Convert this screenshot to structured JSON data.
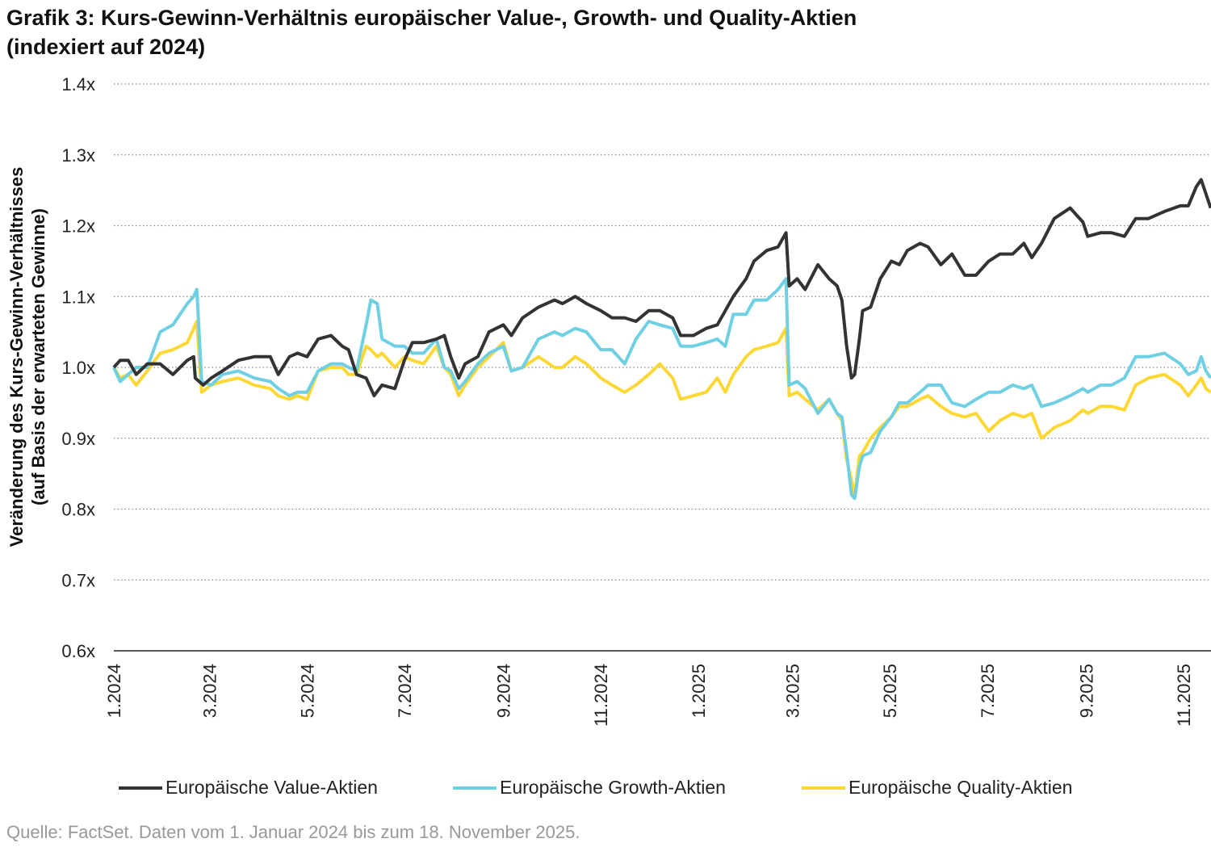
{
  "title_line1": "Grafik 3: Kurs-Gewinn-Verhältnis europäischer Value-, Growth- und Quality-Aktien",
  "title_line2": "(indexiert auf 2024)",
  "source": "Quelle: FactSet. Daten vom 1. Januar 2024 bis zum 18. November 2025.",
  "chart_data": {
    "type": "line",
    "ylabel_line1": "Veränderung des Kurs-Gewinn-Verhältnisses",
    "ylabel_line2": "(auf Basis der erwarteten Gewinne)",
    "ylim": [
      0.6,
      1.4
    ],
    "yticks": [
      0.6,
      0.7,
      0.8,
      0.9,
      1.0,
      1.1,
      1.2,
      1.3,
      1.4
    ],
    "ytick_labels": [
      "0.6x",
      "0.7x",
      "0.8x",
      "0.9x",
      "1.0x",
      "1.1x",
      "1.2x",
      "1.3x",
      "1.4x"
    ],
    "xlim": [
      "2024-01-01",
      "2025-11-18"
    ],
    "xticks": [
      "2024-01-01",
      "2024-03-01",
      "2024-05-01",
      "2024-07-01",
      "2024-09-01",
      "2024-11-01",
      "2025-01-01",
      "2025-03-01",
      "2025-05-01",
      "2025-07-01",
      "2025-09-01",
      "2025-11-01"
    ],
    "xtick_labels": [
      "1.2024",
      "3.2024",
      "5.2024",
      "7.2024",
      "9.2024",
      "11.2024",
      "1.2025",
      "3.2025",
      "5.2025",
      "7.2025",
      "9.2025",
      "11.2025"
    ],
    "grid": "horizontal dotted",
    "legend_position": "bottom",
    "series": [
      {
        "name": "Europäische Value-Aktien",
        "color": "#333333",
        "dates": [
          "2024-01-01",
          "2024-01-05",
          "2024-01-10",
          "2024-01-15",
          "2024-01-22",
          "2024-01-30",
          "2024-02-07",
          "2024-02-16",
          "2024-02-20",
          "2024-02-21",
          "2024-02-26",
          "2024-03-02",
          "2024-03-09",
          "2024-03-19",
          "2024-03-29",
          "2024-04-08",
          "2024-04-13",
          "2024-04-20",
          "2024-04-25",
          "2024-05-01",
          "2024-05-08",
          "2024-05-16",
          "2024-05-23",
          "2024-05-27",
          "2024-06-01",
          "2024-06-07",
          "2024-06-12",
          "2024-06-17",
          "2024-06-25",
          "2024-07-01",
          "2024-07-06",
          "2024-07-13",
          "2024-07-21",
          "2024-07-26",
          "2024-07-30",
          "2024-08-04",
          "2024-08-08",
          "2024-08-16",
          "2024-08-23",
          "2024-09-01",
          "2024-09-06",
          "2024-09-13",
          "2024-09-23",
          "2024-10-03",
          "2024-10-08",
          "2024-10-16",
          "2024-10-23",
          "2024-11-01",
          "2024-11-08",
          "2024-11-16",
          "2024-11-23",
          "2024-12-01",
          "2024-12-08",
          "2024-12-16",
          "2024-12-21",
          "2024-12-29",
          "2025-01-06",
          "2025-01-13",
          "2025-01-18",
          "2025-01-23",
          "2025-01-31",
          "2025-02-05",
          "2025-02-13",
          "2025-02-20",
          "2025-02-25",
          "2025-02-27",
          "2025-03-04",
          "2025-03-09",
          "2025-03-17",
          "2025-03-24",
          "2025-03-29",
          "2025-04-01",
          "2025-04-04",
          "2025-04-07",
          "2025-04-09",
          "2025-04-12",
          "2025-04-14",
          "2025-04-19",
          "2025-04-25",
          "2025-05-02",
          "2025-05-07",
          "2025-05-12",
          "2025-05-20",
          "2025-05-25",
          "2025-06-02",
          "2025-06-09",
          "2025-06-17",
          "2025-06-24",
          "2025-07-02",
          "2025-07-09",
          "2025-07-17",
          "2025-07-24",
          "2025-07-29",
          "2025-08-04",
          "2025-08-12",
          "2025-08-22",
          "2025-08-30",
          "2025-09-02",
          "2025-09-10",
          "2025-09-17",
          "2025-09-25",
          "2025-10-02",
          "2025-10-10",
          "2025-10-20",
          "2025-10-30",
          "2025-11-04",
          "2025-11-09",
          "2025-11-12",
          "2025-11-15",
          "2025-11-18"
        ],
        "values": [
          1.0,
          1.01,
          1.01,
          0.99,
          1.005,
          1.005,
          0.99,
          1.01,
          1.015,
          0.985,
          0.975,
          0.985,
          0.995,
          1.01,
          1.015,
          1.015,
          0.99,
          1.015,
          1.02,
          1.015,
          1.04,
          1.045,
          1.03,
          1.025,
          0.99,
          0.985,
          0.96,
          0.975,
          0.97,
          1.01,
          1.035,
          1.035,
          1.04,
          1.045,
          1.015,
          0.985,
          1.005,
          1.015,
          1.05,
          1.06,
          1.045,
          1.07,
          1.085,
          1.095,
          1.09,
          1.1,
          1.09,
          1.08,
          1.07,
          1.07,
          1.065,
          1.08,
          1.08,
          1.07,
          1.045,
          1.045,
          1.055,
          1.06,
          1.08,
          1.1,
          1.125,
          1.15,
          1.165,
          1.17,
          1.19,
          1.115,
          1.125,
          1.11,
          1.145,
          1.125,
          1.115,
          1.095,
          1.03,
          0.985,
          0.99,
          1.04,
          1.08,
          1.085,
          1.125,
          1.15,
          1.145,
          1.165,
          1.175,
          1.17,
          1.145,
          1.16,
          1.13,
          1.13,
          1.15,
          1.16,
          1.16,
          1.175,
          1.155,
          1.175,
          1.21,
          1.225,
          1.205,
          1.185,
          1.19,
          1.19,
          1.185,
          1.21,
          1.21,
          1.22,
          1.228,
          1.228,
          1.255,
          1.265,
          1.245,
          1.225
        ]
      },
      {
        "name": "Europäische Growth-Aktien",
        "color": "#6fd0e4",
        "dates": [
          "2024-01-01",
          "2024-01-05",
          "2024-01-10",
          "2024-01-15",
          "2024-01-22",
          "2024-01-30",
          "2024-02-07",
          "2024-02-16",
          "2024-02-20",
          "2024-02-22",
          "2024-02-25",
          "2024-03-02",
          "2024-03-09",
          "2024-03-19",
          "2024-03-29",
          "2024-04-08",
          "2024-04-13",
          "2024-04-20",
          "2024-04-25",
          "2024-05-01",
          "2024-05-08",
          "2024-05-16",
          "2024-05-23",
          "2024-05-27",
          "2024-06-01",
          "2024-06-07",
          "2024-06-10",
          "2024-06-14",
          "2024-06-17",
          "2024-06-25",
          "2024-07-01",
          "2024-07-06",
          "2024-07-13",
          "2024-07-21",
          "2024-07-26",
          "2024-07-30",
          "2024-08-04",
          "2024-08-08",
          "2024-08-16",
          "2024-08-23",
          "2024-09-01",
          "2024-09-06",
          "2024-09-13",
          "2024-09-23",
          "2024-10-03",
          "2024-10-08",
          "2024-10-16",
          "2024-10-23",
          "2024-11-01",
          "2024-11-08",
          "2024-11-16",
          "2024-11-23",
          "2024-12-01",
          "2024-12-08",
          "2024-12-16",
          "2024-12-21",
          "2024-12-29",
          "2025-01-06",
          "2025-01-13",
          "2025-01-18",
          "2025-01-23",
          "2025-01-31",
          "2025-02-05",
          "2025-02-13",
          "2025-02-20",
          "2025-02-25",
          "2025-02-27",
          "2025-03-04",
          "2025-03-09",
          "2025-03-17",
          "2025-03-24",
          "2025-03-29",
          "2025-04-01",
          "2025-04-04",
          "2025-04-07",
          "2025-04-09",
          "2025-04-12",
          "2025-04-14",
          "2025-04-19",
          "2025-04-25",
          "2025-05-02",
          "2025-05-07",
          "2025-05-12",
          "2025-05-20",
          "2025-05-25",
          "2025-06-02",
          "2025-06-09",
          "2025-06-17",
          "2025-06-24",
          "2025-07-02",
          "2025-07-09",
          "2025-07-17",
          "2025-07-24",
          "2025-07-29",
          "2025-08-04",
          "2025-08-12",
          "2025-08-22",
          "2025-08-30",
          "2025-09-02",
          "2025-09-10",
          "2025-09-17",
          "2025-09-25",
          "2025-10-02",
          "2025-10-10",
          "2025-10-20",
          "2025-10-30",
          "2025-11-04",
          "2025-11-09",
          "2025-11-12",
          "2025-11-15",
          "2025-11-18"
        ],
        "values": [
          1.0,
          0.98,
          0.99,
          1.0,
          1.0,
          1.05,
          1.06,
          1.09,
          1.1,
          1.11,
          0.98,
          0.975,
          0.99,
          0.995,
          0.985,
          0.98,
          0.97,
          0.96,
          0.965,
          0.965,
          0.995,
          1.005,
          1.005,
          1.0,
          0.995,
          1.06,
          1.095,
          1.09,
          1.04,
          1.03,
          1.03,
          1.02,
          1.02,
          1.04,
          1.0,
          0.995,
          0.97,
          0.98,
          1.005,
          1.02,
          1.03,
          0.995,
          1.0,
          1.04,
          1.05,
          1.045,
          1.055,
          1.05,
          1.025,
          1.025,
          1.005,
          1.04,
          1.065,
          1.06,
          1.055,
          1.03,
          1.03,
          1.035,
          1.04,
          1.03,
          1.075,
          1.075,
          1.095,
          1.095,
          1.11,
          1.125,
          0.975,
          0.98,
          0.97,
          0.935,
          0.955,
          0.935,
          0.93,
          0.88,
          0.82,
          0.815,
          0.86,
          0.875,
          0.88,
          0.91,
          0.93,
          0.95,
          0.95,
          0.965,
          0.975,
          0.975,
          0.95,
          0.945,
          0.955,
          0.965,
          0.965,
          0.975,
          0.97,
          0.975,
          0.945,
          0.95,
          0.96,
          0.97,
          0.965,
          0.975,
          0.975,
          0.985,
          1.015,
          1.015,
          1.02,
          1.005,
          0.99,
          0.995,
          1.015,
          0.995,
          0.985
        ]
      },
      {
        "name": "Europäische Quality-Aktien",
        "color": "#fdd835",
        "dates": [
          "2024-01-01",
          "2024-01-05",
          "2024-01-10",
          "2024-01-15",
          "2024-01-22",
          "2024-01-30",
          "2024-02-07",
          "2024-02-16",
          "2024-02-20",
          "2024-02-22",
          "2024-02-25",
          "2024-03-02",
          "2024-03-09",
          "2024-03-19",
          "2024-03-29",
          "2024-04-08",
          "2024-04-13",
          "2024-04-20",
          "2024-04-25",
          "2024-05-01",
          "2024-05-08",
          "2024-05-16",
          "2024-05-23",
          "2024-05-27",
          "2024-06-01",
          "2024-06-07",
          "2024-06-10",
          "2024-06-14",
          "2024-06-17",
          "2024-06-25",
          "2024-07-01",
          "2024-07-06",
          "2024-07-13",
          "2024-07-21",
          "2024-07-26",
          "2024-07-30",
          "2024-08-04",
          "2024-08-08",
          "2024-08-16",
          "2024-08-23",
          "2024-09-01",
          "2024-09-06",
          "2024-09-13",
          "2024-09-23",
          "2024-10-03",
          "2024-10-08",
          "2024-10-16",
          "2024-10-23",
          "2024-11-01",
          "2024-11-08",
          "2024-11-16",
          "2024-11-23",
          "2024-12-01",
          "2024-12-08",
          "2024-12-16",
          "2024-12-21",
          "2024-12-29",
          "2025-01-06",
          "2025-01-13",
          "2025-01-18",
          "2025-01-23",
          "2025-01-31",
          "2025-02-05",
          "2025-02-13",
          "2025-02-20",
          "2025-02-25",
          "2025-02-27",
          "2025-03-04",
          "2025-03-09",
          "2025-03-17",
          "2025-03-24",
          "2025-03-29",
          "2025-04-01",
          "2025-04-04",
          "2025-04-07",
          "2025-04-09",
          "2025-04-12",
          "2025-04-14",
          "2025-04-19",
          "2025-04-25",
          "2025-05-02",
          "2025-05-07",
          "2025-05-12",
          "2025-05-20",
          "2025-05-25",
          "2025-06-02",
          "2025-06-09",
          "2025-06-17",
          "2025-06-24",
          "2025-07-02",
          "2025-07-09",
          "2025-07-17",
          "2025-07-24",
          "2025-07-29",
          "2025-08-04",
          "2025-08-12",
          "2025-08-22",
          "2025-08-30",
          "2025-09-02",
          "2025-09-10",
          "2025-09-17",
          "2025-09-25",
          "2025-10-02",
          "2025-10-10",
          "2025-10-20",
          "2025-10-30",
          "2025-11-04",
          "2025-11-09",
          "2025-11-12",
          "2025-11-15",
          "2025-11-18"
        ],
        "values": [
          1.0,
          0.985,
          0.99,
          0.975,
          0.995,
          1.02,
          1.025,
          1.035,
          1.055,
          1.065,
          0.965,
          0.975,
          0.98,
          0.985,
          0.975,
          0.97,
          0.96,
          0.955,
          0.96,
          0.955,
          0.995,
          1.0,
          1.0,
          0.99,
          0.99,
          1.03,
          1.025,
          1.015,
          1.02,
          1.0,
          1.015,
          1.01,
          1.005,
          1.03,
          1.0,
          0.99,
          0.96,
          0.975,
          1.0,
          1.015,
          1.035,
          0.995,
          1.0,
          1.015,
          1.0,
          1.0,
          1.015,
          1.005,
          0.985,
          0.975,
          0.965,
          0.975,
          0.99,
          1.005,
          0.985,
          0.955,
          0.96,
          0.965,
          0.985,
          0.965,
          0.99,
          1.015,
          1.025,
          1.03,
          1.035,
          1.055,
          0.96,
          0.965,
          0.955,
          0.94,
          0.955,
          0.935,
          0.925,
          0.87,
          0.84,
          0.82,
          0.875,
          0.88,
          0.9,
          0.915,
          0.93,
          0.945,
          0.945,
          0.955,
          0.96,
          0.945,
          0.935,
          0.93,
          0.935,
          0.91,
          0.925,
          0.935,
          0.93,
          0.935,
          0.9,
          0.915,
          0.925,
          0.94,
          0.935,
          0.945,
          0.945,
          0.94,
          0.975,
          0.985,
          0.99,
          0.975,
          0.96,
          0.975,
          0.985,
          0.97,
          0.965
        ]
      }
    ]
  }
}
